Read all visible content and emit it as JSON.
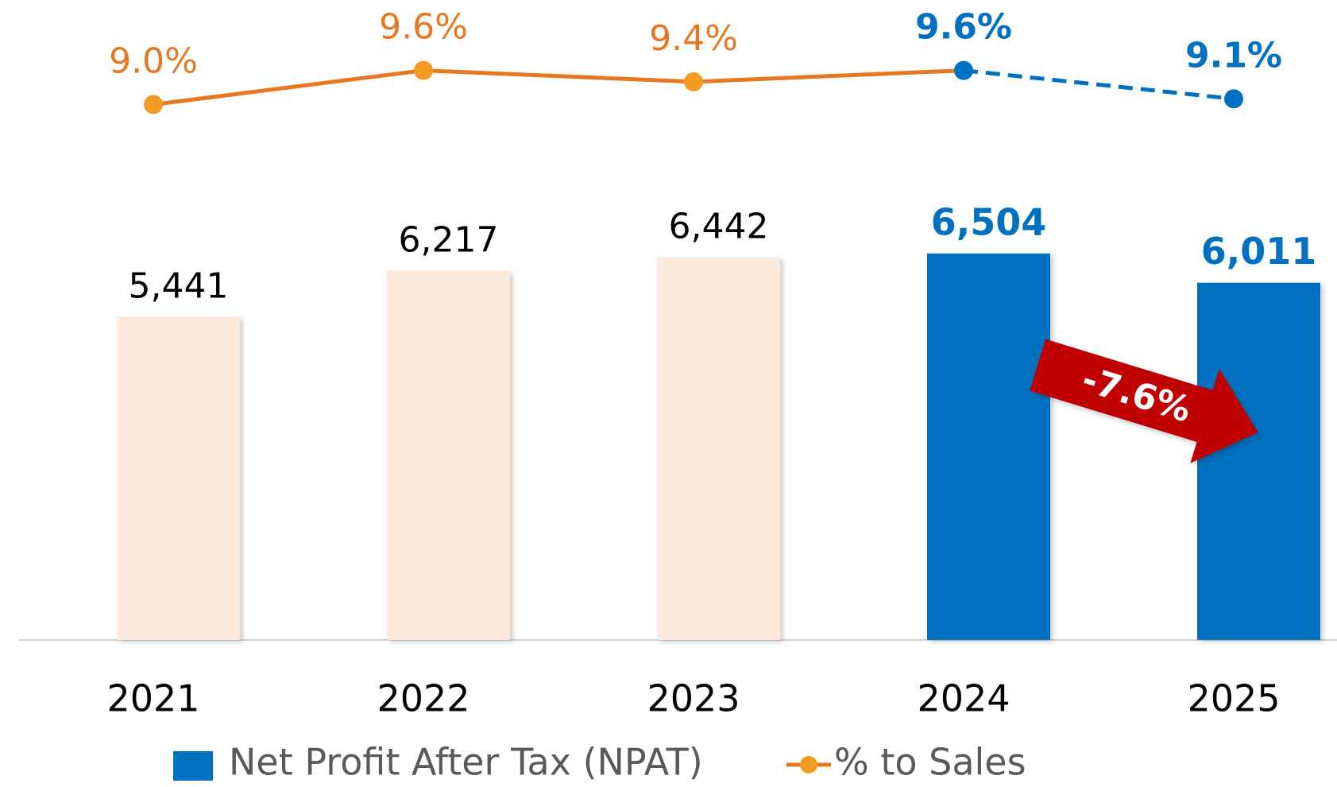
{
  "chart_data": {
    "type": "bar",
    "categories": [
      "2021",
      "2022",
      "2023",
      "2024",
      "2025"
    ],
    "highlight_from": 3,
    "ylim": [
      0,
      8000
    ],
    "y2lim": [
      8,
      10
    ],
    "series": [
      {
        "name": "Net Profit After Tax (NPAT)",
        "type": "bar",
        "color": "#0070c0",
        "colors": [
          "#fce9dc",
          "#fce9dc",
          "#fce9dc",
          "#0070c0",
          "#0070c0"
        ],
        "label_colors": [
          "#000000",
          "#000000",
          "#000000",
          "#0070c0",
          "#0070c0"
        ],
        "values": [
          5441,
          6217,
          6442,
          6504,
          6011
        ],
        "value_labels": [
          "5,441",
          "6,217",
          "6,442",
          "6,504",
          "6,011"
        ]
      },
      {
        "name": "% to Sales",
        "type": "line",
        "axis": "y2",
        "color": "#e87722",
        "highlight_color": "#0070c0",
        "values": [
          9.0,
          9.6,
          9.4,
          9.6,
          9.1
        ],
        "value_labels": [
          "9.0%",
          "9.6%",
          "9.4%",
          "9.6%",
          "9.1%"
        ]
      }
    ],
    "annotations": [
      {
        "text": "-7.6%"
      }
    ]
  }
}
